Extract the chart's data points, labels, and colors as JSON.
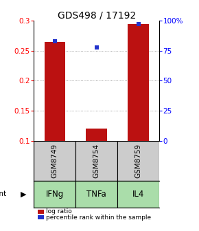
{
  "title": "GDS498 / 17192",
  "samples": [
    "GSM8749",
    "GSM8754",
    "GSM8759"
  ],
  "agents": [
    "IFNg",
    "TNFa",
    "IL4"
  ],
  "log_ratios": [
    0.265,
    0.12,
    0.295
  ],
  "percentiles": [
    83,
    78,
    97
  ],
  "ylim_left": [
    0.1,
    0.3
  ],
  "ylim_right": [
    0,
    100
  ],
  "yticks_left": [
    0.1,
    0.15,
    0.2,
    0.25,
    0.3
  ],
  "yticks_right": [
    0,
    25,
    50,
    75,
    100
  ],
  "ytick_labels_right": [
    "0",
    "25",
    "50",
    "75",
    "100%"
  ],
  "bar_color": "#bb1111",
  "marker_color": "#2233cc",
  "grid_color": "#888888",
  "box_bg_color": "#cccccc",
  "agent_bg_color": "#aaddaa",
  "agent_font_size": 8.5,
  "sample_font_size": 7.5,
  "title_font_size": 10,
  "legend_label_log": "log ratio",
  "legend_label_pct": "percentile rank within the sample",
  "bar_width": 0.5,
  "x_positions": [
    1,
    2,
    3
  ]
}
